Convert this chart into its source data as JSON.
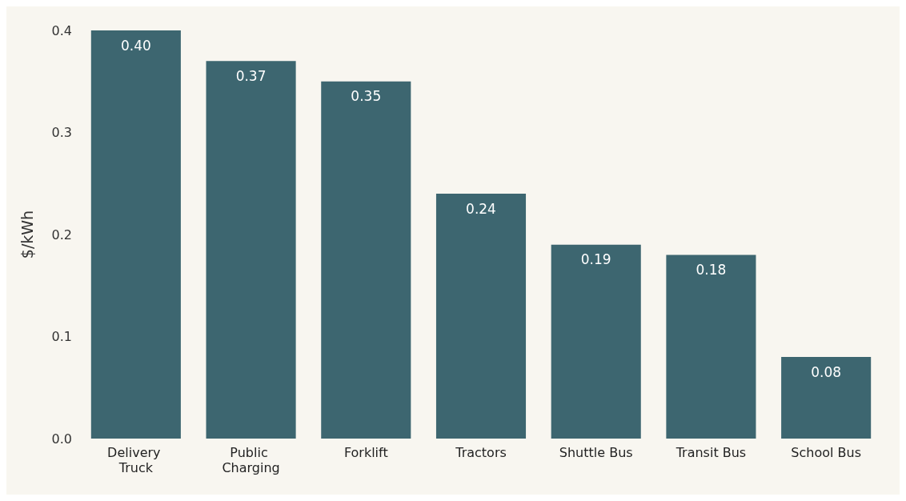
{
  "chart_data": {
    "type": "bar",
    "ylabel": "$/kWh",
    "categories": [
      "Delivery Truck",
      "Public Charging",
      "Forklift",
      "Tractors",
      "Shuttle Bus",
      "Transit Bus",
      "School Bus"
    ],
    "values": [
      0.4,
      0.37,
      0.35,
      0.24,
      0.19,
      0.18,
      0.08
    ],
    "value_labels": [
      "0.40",
      "0.37",
      "0.35",
      "0.24",
      "0.19",
      "0.18",
      "0.08"
    ],
    "color": "#3d6670",
    "ylim": [
      0,
      0.4
    ],
    "yticks": [
      {
        "value": 0,
        "label": "0.0"
      },
      {
        "value": 0.1,
        "label": "0.1"
      },
      {
        "value": 0.2,
        "label": "0.2"
      },
      {
        "value": 0.3,
        "label": "0.3"
      },
      {
        "value": 0.4,
        "label": "0.4"
      }
    ],
    "grid": false
  }
}
